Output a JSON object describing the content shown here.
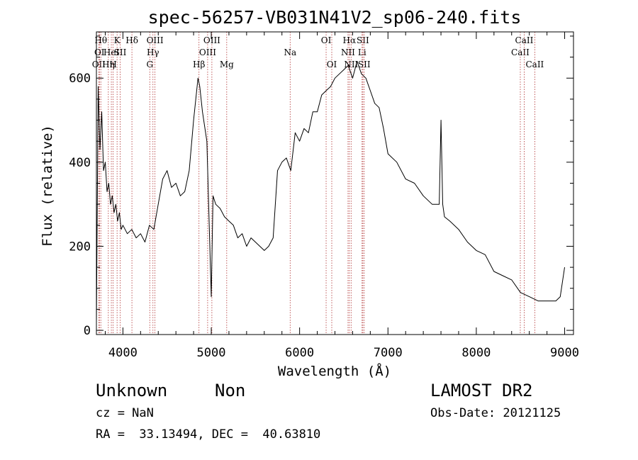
{
  "chart_data": {
    "type": "line",
    "title": "spec-56257-VB031N41V2_sp06-240.fits",
    "xlabel": "Wavelength (Å)",
    "ylabel": "Flux (relative)",
    "xlim": [
      3700,
      9100
    ],
    "ylim": [
      -10,
      710
    ],
    "xticks": [
      4000,
      5000,
      6000,
      7000,
      8000,
      9000
    ],
    "yticks": [
      0,
      200,
      400,
      600
    ],
    "grid": false,
    "series": [
      {
        "x": [
          3700,
          3720,
          3740,
          3760,
          3780,
          3800,
          3820,
          3840,
          3860,
          3880,
          3900,
          3920,
          3940,
          3960,
          3980,
          4000,
          4050,
          4100,
          4150,
          4200,
          4250,
          4300,
          4350,
          4400,
          4450,
          4500,
          4550,
          4600,
          4650,
          4700,
          4750,
          4800,
          4850,
          4870,
          4900,
          4950,
          5000,
          5020,
          5050,
          5100,
          5150,
          5200,
          5250,
          5300,
          5350,
          5400,
          5450,
          5500,
          5550,
          5600,
          5650,
          5700,
          5750,
          5800,
          5850,
          5900,
          5950,
          6000,
          6050,
          6100,
          6150,
          6200,
          6250,
          6300,
          6350,
          6400,
          6450,
          6500,
          6550,
          6600,
          6650,
          6700,
          6750,
          6800,
          6850,
          6900,
          6950,
          7000,
          7100,
          7200,
          7300,
          7400,
          7500,
          7580,
          7600,
          7620,
          7640,
          7700,
          7800,
          7900,
          8000,
          8100,
          8200,
          8300,
          8400,
          8500,
          8600,
          8700,
          8800,
          8900,
          8950,
          9000
        ],
        "y": [
          20,
          580,
          430,
          520,
          380,
          400,
          330,
          350,
          300,
          320,
          280,
          300,
          260,
          280,
          240,
          250,
          230,
          240,
          220,
          230,
          210,
          250,
          240,
          300,
          360,
          380,
          340,
          350,
          320,
          330,
          380,
          500,
          600,
          580,
          520,
          450,
          80,
          320,
          300,
          290,
          270,
          260,
          250,
          220,
          230,
          200,
          220,
          210,
          200,
          190,
          200,
          220,
          380,
          400,
          410,
          380,
          470,
          450,
          480,
          470,
          520,
          520,
          560,
          570,
          580,
          600,
          610,
          620,
          630,
          600,
          640,
          610,
          600,
          570,
          540,
          530,
          480,
          420,
          400,
          360,
          350,
          320,
          300,
          300,
          500,
          300,
          270,
          260,
          240,
          210,
          190,
          180,
          140,
          130,
          120,
          90,
          80,
          70,
          70,
          70,
          80,
          150
        ]
      }
    ],
    "line_markers": [
      {
        "x": 3727,
        "label": "OII",
        "row": 3
      },
      {
        "x": 3734,
        "label": "OI",
        "row": 2
      },
      {
        "x": 3750,
        "label": "Hθ",
        "row": 1
      },
      {
        "x": 3835,
        "label": "Hη",
        "row": 3
      },
      {
        "x": 3869,
        "label": "HeI",
        "row": 2
      },
      {
        "x": 3889,
        "label": "H",
        "row": 3
      },
      {
        "x": 3934,
        "label": "K",
        "row": 1
      },
      {
        "x": 3969,
        "label": "SII",
        "row": 2
      },
      {
        "x": 4102,
        "label": "Hδ",
        "row": 1
      },
      {
        "x": 4304,
        "label": "G",
        "row": 3
      },
      {
        "x": 4340,
        "label": "Hγ",
        "row": 2
      },
      {
        "x": 4363,
        "label": "OIII",
        "row": 1
      },
      {
        "x": 4861,
        "label": "Hβ",
        "row": 3
      },
      {
        "x": 4959,
        "label": "OIII",
        "row": 2
      },
      {
        "x": 5007,
        "label": "OIII",
        "row": 1
      },
      {
        "x": 5175,
        "label": "Mg",
        "row": 3
      },
      {
        "x": 5893,
        "label": "Na",
        "row": 2
      },
      {
        "x": 6300,
        "label": "OI",
        "row": 1
      },
      {
        "x": 6364,
        "label": "OI",
        "row": 3
      },
      {
        "x": 6548,
        "label": "NII",
        "row": 2
      },
      {
        "x": 6563,
        "label": "Hα",
        "row": 1
      },
      {
        "x": 6583,
        "label": "NII",
        "row": 3
      },
      {
        "x": 6707,
        "label": "Li",
        "row": 2
      },
      {
        "x": 6716,
        "label": "SII",
        "row": 1
      },
      {
        "x": 6731,
        "label": "SII",
        "row": 3
      },
      {
        "x": 8498,
        "label": "CaII",
        "row": 2
      },
      {
        "x": 8542,
        "label": "CaII",
        "row": 1
      },
      {
        "x": 8662,
        "label": "CaII",
        "row": 3
      }
    ]
  },
  "info": {
    "class": "Unknown",
    "subclass": "Non",
    "survey": "LAMOST DR2",
    "cz": "cz = NaN",
    "obs_date": "Obs-Date: 20121125",
    "coords": "RA =  33.13494, DEC =  40.63810"
  }
}
